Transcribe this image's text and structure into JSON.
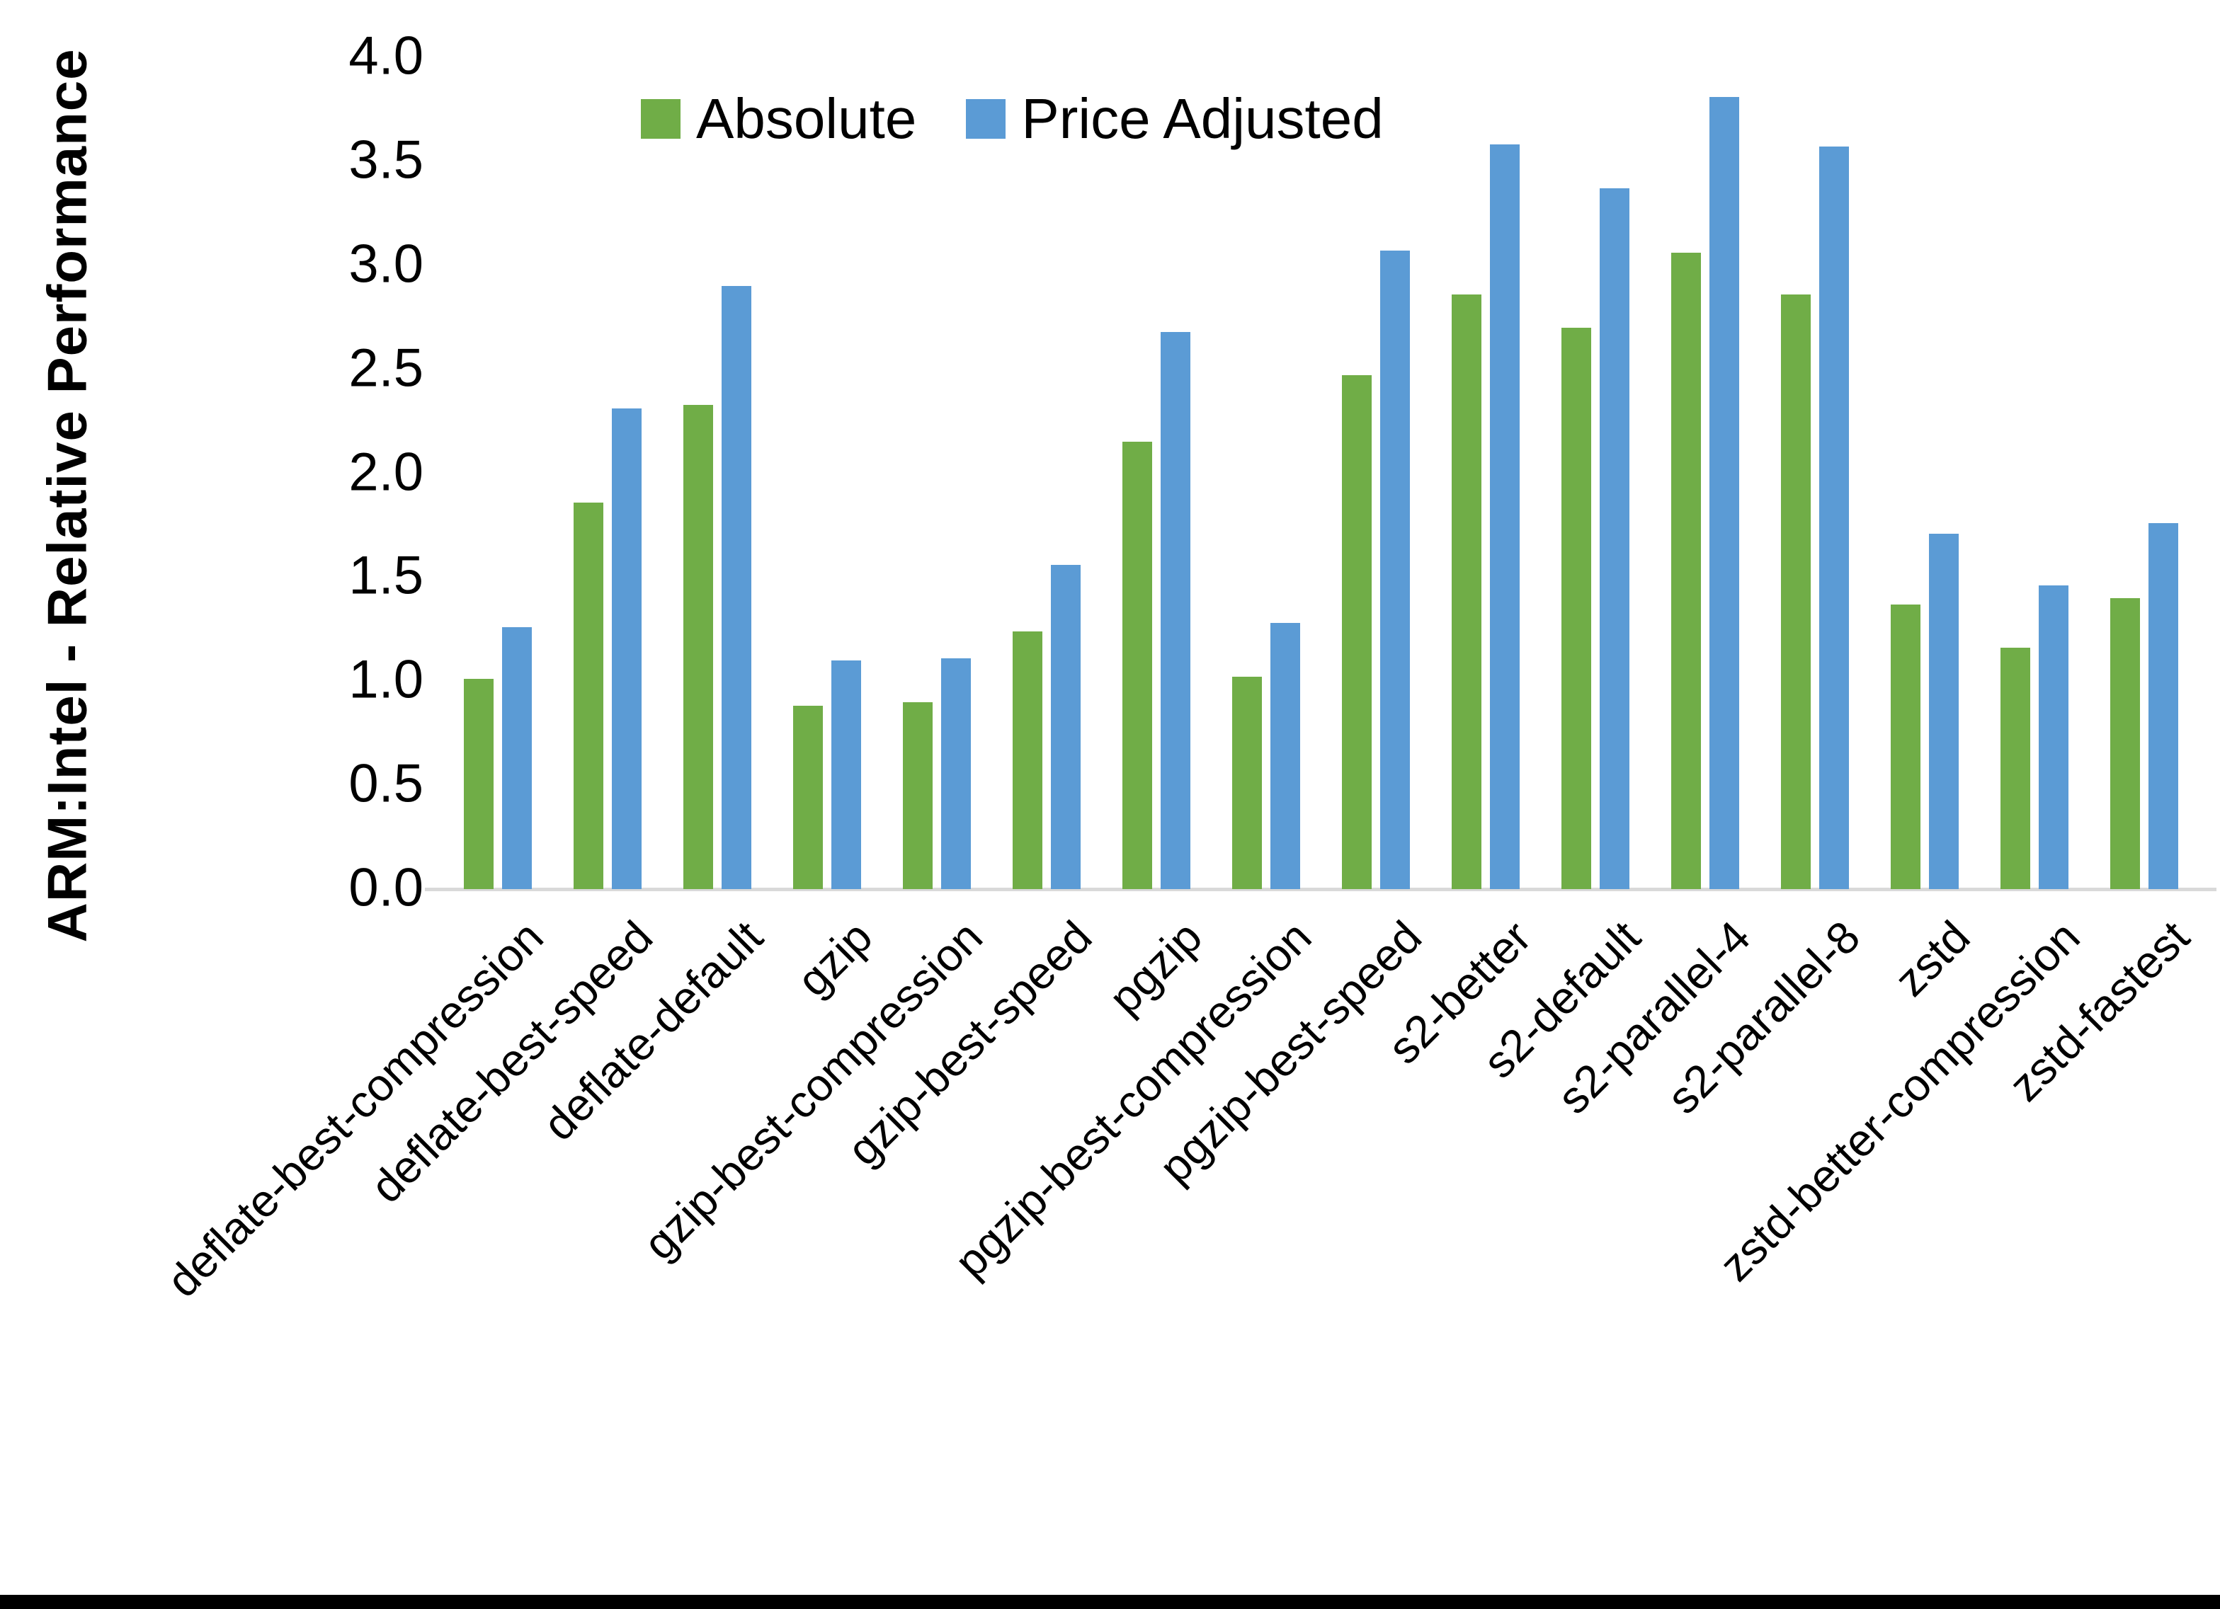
{
  "chart_data": {
    "type": "bar",
    "title": "",
    "xlabel": "",
    "ylabel": "ARM:Intel - Relative Performance",
    "ylim": [
      0.0,
      4.0
    ],
    "ytick_step": 0.5,
    "ytick_labels": [
      "0.0",
      "0.5",
      "1.0",
      "1.5",
      "2.0",
      "2.5",
      "3.0",
      "3.5",
      "4.0"
    ],
    "grid": false,
    "legend_position": "top-center",
    "categories": [
      "deflate-best-compression",
      "deflate-best-speed",
      "deflate-default",
      "gzip",
      "gzip-best-compression",
      "gzip-best-speed",
      "pgzip",
      "pgzip-best-compression",
      "pgzip-best-speed",
      "s2-better",
      "s2-default",
      "s2-parallel-4",
      "s2-parallel-8",
      "zstd",
      "zstd-better-compression",
      "zstd-fastest"
    ],
    "series": [
      {
        "name": "Absolute",
        "color": "#70AD47",
        "values": [
          1.01,
          1.86,
          2.33,
          0.88,
          0.9,
          1.24,
          2.15,
          1.02,
          2.47,
          2.86,
          2.7,
          3.06,
          2.86,
          1.37,
          1.16,
          1.4
        ]
      },
      {
        "name": "Price Adjusted",
        "color": "#5B9BD5",
        "values": [
          1.26,
          2.31,
          2.9,
          1.1,
          1.11,
          1.56,
          2.68,
          1.28,
          3.07,
          3.58,
          3.37,
          3.81,
          3.57,
          1.71,
          1.46,
          1.76
        ]
      }
    ]
  },
  "colors": {
    "axis_line": "#d9d9d9",
    "text": "#000000",
    "background": "#ffffff",
    "bottom_border": "#000000"
  }
}
